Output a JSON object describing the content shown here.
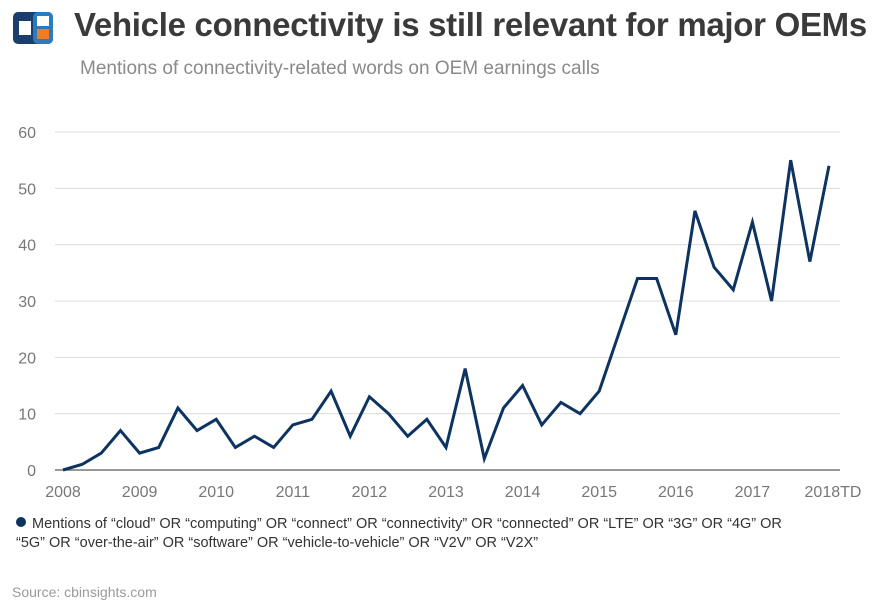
{
  "header": {
    "title": "Vehicle connectivity is still relevant for major OEMs",
    "subtitle": "Mentions of connectivity-related words on OEM earnings calls",
    "logo_text": "CB Insights"
  },
  "chart_data": {
    "type": "line",
    "x_tick_labels": [
      "2008",
      "2009",
      "2010",
      "2011",
      "2012",
      "2013",
      "2014",
      "2015",
      "2016",
      "2017",
      "2018TD"
    ],
    "series": [
      {
        "name": "Mentions of “cloud” OR “computing” OR “connect” OR “connectivity” OR “connected” OR “LTE” OR “3G” OR “4G” OR “5G” OR “over-the-air” OR “software” OR “vehicle-to-vehicle” OR “V2V” OR “V2X”",
        "color": "#0d3361",
        "values": [
          0,
          1,
          3,
          7,
          3,
          4,
          11,
          7,
          9,
          4,
          6,
          4,
          8,
          9,
          14,
          6,
          13,
          10,
          6,
          9,
          4,
          18,
          2,
          11,
          15,
          8,
          12,
          10,
          14,
          24,
          34,
          34,
          24,
          46,
          36,
          32,
          44,
          30,
          55,
          37,
          54
        ]
      }
    ],
    "ylim": [
      0,
      60
    ],
    "y_ticks": [
      0,
      10,
      20,
      30,
      40,
      50,
      60
    ],
    "grid": true,
    "legend": "bottom-left"
  },
  "footer": {
    "source": "Source: cbinsights.com"
  }
}
